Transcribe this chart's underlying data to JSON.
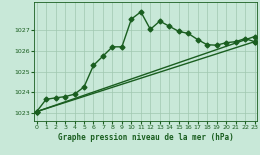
{
  "xlabel": "Graphe pression niveau de la mer (hPa)",
  "bg_color": "#c8e8d8",
  "grid_color": "#a0c8b0",
  "line_color": "#1a5e20",
  "xlim": [
    -0.3,
    23.3
  ],
  "ylim": [
    1022.6,
    1028.4
  ],
  "yticks": [
    1023,
    1024,
    1025,
    1026,
    1027
  ],
  "xticks": [
    0,
    1,
    2,
    3,
    4,
    5,
    6,
    7,
    8,
    9,
    10,
    11,
    12,
    13,
    14,
    15,
    16,
    17,
    18,
    19,
    20,
    21,
    22,
    23
  ],
  "series1_x": [
    0,
    1,
    2,
    3,
    4,
    5,
    6,
    7,
    8,
    9,
    10,
    11,
    12,
    13,
    14,
    15,
    16,
    17,
    18,
    19,
    20,
    21,
    22,
    23
  ],
  "series1_y": [
    1023.05,
    1023.65,
    1023.72,
    1023.78,
    1023.9,
    1024.25,
    1025.3,
    1025.75,
    1026.2,
    1026.2,
    1027.55,
    1027.9,
    1027.05,
    1027.45,
    1027.2,
    1026.95,
    1026.85,
    1026.55,
    1026.3,
    1026.28,
    1026.4,
    1026.45,
    1026.6,
    1026.45
  ],
  "series2_x": [
    0,
    23
  ],
  "series2_y": [
    1023.05,
    1026.7
  ],
  "series3_x": [
    0,
    23
  ],
  "series3_y": [
    1023.05,
    1026.45
  ],
  "marker": "D",
  "markersize": 2.5,
  "linewidth": 1.0
}
